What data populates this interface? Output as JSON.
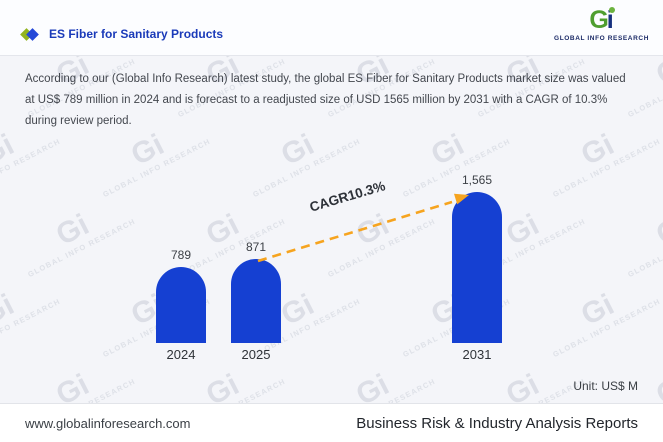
{
  "header": {
    "title": "ES Fiber for Sanitary Products",
    "brand": {
      "logo_g": "G",
      "logo_i": "i",
      "name": "GLOBAL INFO RESEARCH"
    }
  },
  "description": "According to our (Global Info Research) latest study, the global ES Fiber for Sanitary Products market size was valued at US$ 789 million in 2024 and is forecast to a readjusted size of USD 1565 million by 2031 with a CAGR of 10.3% during review period.",
  "chart_data": {
    "type": "bar",
    "categories": [
      "2024",
      "2025",
      "2031"
    ],
    "values": [
      789,
      871,
      1565
    ],
    "value_labels": [
      "789",
      "871",
      "1,565"
    ],
    "series_name": "Market size (US$ M)",
    "annotation": "CAGR10.3%",
    "unit_label": "Unit: US$ M",
    "ylim": [
      0,
      1700
    ],
    "grid": false,
    "legend": false,
    "bar_color": "#1540d2",
    "arrow_color": "#f6a41f"
  },
  "watermark": {
    "glyph": "Gi",
    "text": "GLOBAL INFO RESEARCH"
  },
  "footer": {
    "website": "www.globalinforesearch.com",
    "tagline": "Business Risk & Industry Analysis Reports"
  }
}
